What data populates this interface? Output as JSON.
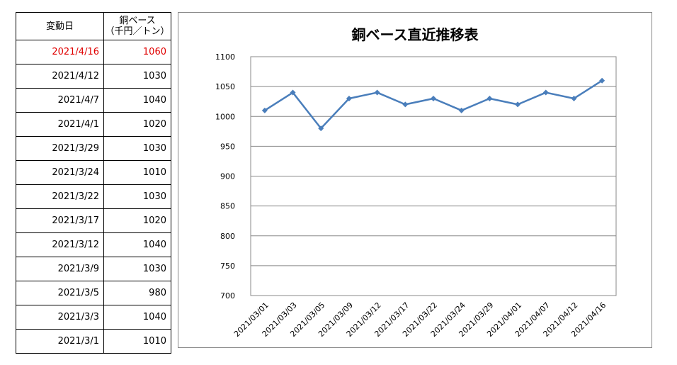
{
  "table": {
    "header_date": "変動日",
    "header_value_line1": "銅ベース",
    "header_value_line2": "（千円／トン）",
    "rows": [
      {
        "date": "2021/4/16",
        "value": "1060"
      },
      {
        "date": "2021/4/12",
        "value": "1030"
      },
      {
        "date": "2021/4/7",
        "value": "1040"
      },
      {
        "date": "2021/4/1",
        "value": "1020"
      },
      {
        "date": "2021/3/29",
        "value": "1030"
      },
      {
        "date": "2021/3/24",
        "value": "1010"
      },
      {
        "date": "2021/3/22",
        "value": "1030"
      },
      {
        "date": "2021/3/17",
        "value": "1020"
      },
      {
        "date": "2021/3/12",
        "value": "1040"
      },
      {
        "date": "2021/3/9",
        "value": "1030"
      },
      {
        "date": "2021/3/5",
        "value": "980"
      },
      {
        "date": "2021/3/3",
        "value": "1040"
      },
      {
        "date": "2021/3/1",
        "value": "1010"
      }
    ],
    "highlight_color": "#e00000"
  },
  "chart_data": {
    "type": "line",
    "title": "銅ベース直近推移表",
    "xlabel": "",
    "ylabel": "",
    "categories": [
      "2021/03/01",
      "2021/03/03",
      "2021/03/05",
      "2021/03/09",
      "2021/03/12",
      "2021/03/17",
      "2021/03/22",
      "2021/03/24",
      "2021/03/29",
      "2021/04/01",
      "2021/04/07",
      "2021/04/12",
      "2021/04/16"
    ],
    "series": [
      {
        "values": [
          1010,
          1040,
          980,
          1030,
          1040,
          1020,
          1030,
          1010,
          1030,
          1020,
          1040,
          1030,
          1060
        ],
        "color": "#4a7ebb"
      }
    ],
    "ylim": [
      700,
      1100
    ],
    "yticks": [
      "700",
      "750",
      "800",
      "850",
      "900",
      "950",
      "1000",
      "1050",
      "1100"
    ],
    "grid": true,
    "marker": "diamond"
  }
}
